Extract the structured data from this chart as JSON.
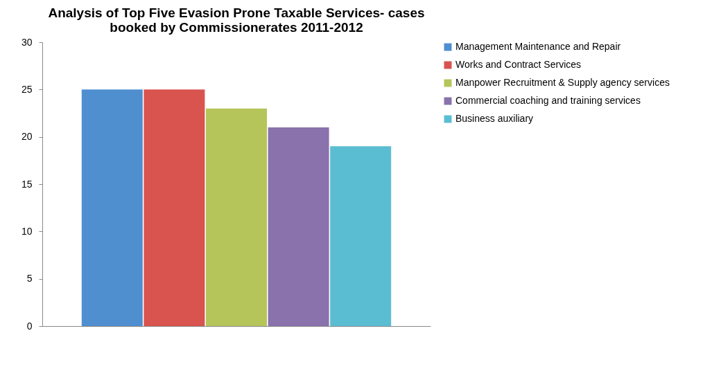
{
  "chart_data": {
    "type": "bar",
    "title": "Analysis of Top Five Evasion Prone Taxable Services- cases booked by Commissionerates 2011-2012",
    "categories": [
      null
    ],
    "series": [
      {
        "name": "Management Maintenance and Repair",
        "color": "#4f8fd0",
        "values": [
          25
        ]
      },
      {
        "name": "Works and Contract Services",
        "color": "#d9534f",
        "values": [
          25
        ]
      },
      {
        "name": "Manpower Recruitment & Supply agency services",
        "color": "#b5c55a",
        "values": [
          23
        ]
      },
      {
        "name": "Commercial coaching and training services",
        "color": "#8a72ad",
        "values": [
          21
        ]
      },
      {
        "name": "Business auxiliary",
        "color": "#5bbdd2",
        "values": [
          19
        ]
      }
    ],
    "ylim": [
      0,
      30
    ],
    "yticks": [
      0,
      5,
      10,
      15,
      20,
      25,
      30
    ],
    "grid": false,
    "legend": "right"
  }
}
